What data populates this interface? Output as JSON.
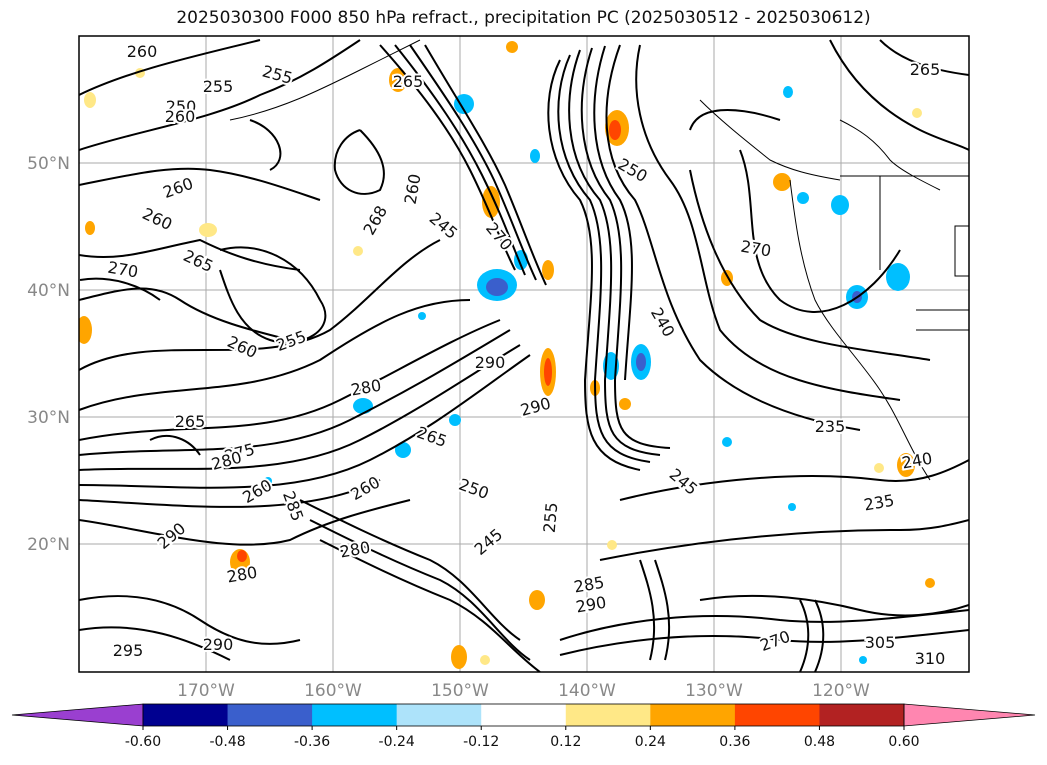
{
  "title": "2025030300 F000 850 hPa refract., precipitation PC (2025030512 - 2025030612)",
  "lat_labels": [
    "50°N",
    "40°N",
    "30°N",
    "20°N"
  ],
  "lon_labels": [
    "170°W",
    "160°W",
    "150°W",
    "140°W",
    "130°W",
    "120°W"
  ],
  "contour_labels": [
    "260",
    "265",
    "250",
    "255",
    "260",
    "260",
    "260",
    "265",
    "270",
    "255",
    "260",
    "268",
    "245",
    "260",
    "255",
    "270",
    "250",
    "240",
    "235",
    "280",
    "290",
    "265",
    "290",
    "275",
    "280",
    "285",
    "290",
    "260",
    "250",
    "245",
    "255",
    "285",
    "290",
    "280",
    "295",
    "290",
    "280",
    "270",
    "305",
    "310",
    "235",
    "240",
    "245",
    "265",
    "260",
    "270",
    "265"
  ],
  "colorbar": {
    "ticks": [
      "-0.60",
      "-0.48",
      "-0.36",
      "-0.24",
      "-0.12",
      "0.12",
      "0.24",
      "0.36",
      "0.48",
      "0.60"
    ],
    "colors": [
      "#9a3fd0",
      "#000090",
      "#3a5fcc",
      "#00bfff",
      "#ade3fa",
      "#ffffff",
      "#ffe887",
      "#ffa500",
      "#ff4500",
      "#b22222",
      "#ff86b0",
      "#ff86b0"
    ]
  }
}
